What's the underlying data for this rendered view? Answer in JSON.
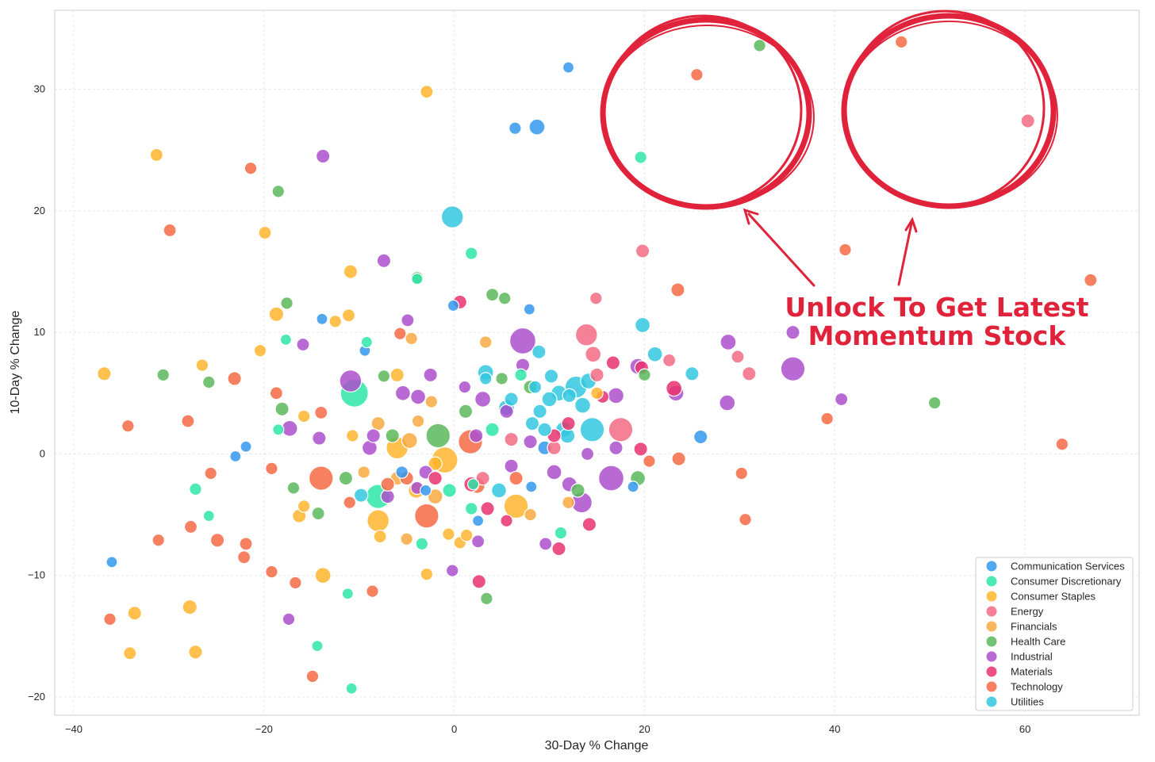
{
  "chart_data": {
    "type": "scatter",
    "xlabel": "30-Day % Change",
    "ylabel": "10-Day % Change",
    "xlim": [
      -42,
      72
    ],
    "ylim": [
      -21.5,
      36.5
    ],
    "xticks": [
      -40,
      -20,
      0,
      20,
      40,
      60
    ],
    "yticks": [
      -20,
      -10,
      0,
      10,
      20,
      30
    ],
    "xtick_labels": [
      "−40",
      "−20",
      "0",
      "20",
      "40",
      "60"
    ],
    "ytick_labels": [
      "−20",
      "−10",
      "0",
      "10",
      "20",
      "30"
    ],
    "grid": true,
    "legend_position": "bottom-right",
    "series": [
      {
        "name": "Communication Services",
        "color": "#3399ee",
        "points": [
          [
            12,
            31.8,
            1
          ],
          [
            6.4,
            26.8,
            1.2
          ],
          [
            8.7,
            26.9,
            2
          ],
          [
            -0.1,
            12.2,
            1
          ],
          [
            7.9,
            11.9,
            1
          ],
          [
            -13.9,
            11.1,
            1
          ],
          [
            -9.4,
            8.5,
            1
          ],
          [
            -21.9,
            0.6,
            1
          ],
          [
            -23,
            -0.2,
            1
          ],
          [
            -36,
            -8.9,
            1
          ],
          [
            8.1,
            -2.7,
            1
          ],
          [
            18.8,
            -2.7,
            1
          ],
          [
            25.9,
            1.4,
            1.5
          ],
          [
            9.5,
            0.5,
            1.5
          ],
          [
            -5.5,
            -1.5,
            1.2
          ],
          [
            -3,
            -3,
            1
          ],
          [
            2.5,
            -5.5,
            1
          ]
        ]
      },
      {
        "name": "Consumer Discretionary",
        "color": "#2ee6a8",
        "points": [
          [
            19.6,
            24.4,
            1.2
          ],
          [
            1.8,
            16.5,
            1.2
          ],
          [
            -3.9,
            14.4,
            1
          ],
          [
            -17.7,
            9.4,
            1
          ],
          [
            -9.2,
            9.2,
            1
          ],
          [
            -18.5,
            2,
            1
          ],
          [
            -27.2,
            -2.9,
            1.2
          ],
          [
            -25.8,
            -5.1,
            1
          ],
          [
            -11.2,
            -11.5,
            1
          ],
          [
            -14.4,
            -15.8,
            1
          ],
          [
            -10.8,
            -19.3,
            1
          ],
          [
            -3.4,
            -7.4,
            1.2
          ],
          [
            11.2,
            -6.5,
            1.2
          ],
          [
            1.8,
            -4.5,
            1.2
          ],
          [
            -10.5,
            5,
            4
          ],
          [
            -8,
            -3.5,
            3
          ],
          [
            4,
            2,
            1.5
          ],
          [
            -0.5,
            -3,
            1.5
          ],
          [
            7,
            6.5,
            1.2
          ],
          [
            2,
            -2.5,
            1
          ]
        ]
      },
      {
        "name": "Consumer Staples",
        "color": "#ffb52e",
        "points": [
          [
            -2.9,
            29.8,
            1.3
          ],
          [
            -31.3,
            24.6,
            1.3
          ],
          [
            -19.9,
            18.2,
            1.3
          ],
          [
            -10.9,
            15,
            1.5
          ],
          [
            -18.7,
            11.5,
            1.7
          ],
          [
            -11.1,
            11.4,
            1.3
          ],
          [
            -12.5,
            10.9,
            1.2
          ],
          [
            -20.4,
            8.5,
            1.2
          ],
          [
            -26.5,
            7.3,
            1.2
          ],
          [
            -36.8,
            6.6,
            1.5
          ],
          [
            -10.7,
            1.5,
            1.2
          ],
          [
            -15.8,
            3.1,
            1.2
          ],
          [
            -15.8,
            -4.3,
            1.2
          ],
          [
            -16.3,
            -5.1,
            1.5
          ],
          [
            -13.8,
            -10,
            2
          ],
          [
            -2.9,
            -9.9,
            1.2
          ],
          [
            -33.6,
            -13.1,
            1.5
          ],
          [
            -27.8,
            -12.6,
            1.7
          ],
          [
            -34.1,
            -16.4,
            1.3
          ],
          [
            -27.2,
            -16.3,
            1.5
          ],
          [
            -7.8,
            -6.8,
            1.3
          ],
          [
            -0.6,
            -6.6,
            1.2
          ],
          [
            0.6,
            -7.3,
            1.2
          ],
          [
            1.3,
            -6.7,
            1.2
          ],
          [
            6.5,
            -4.3,
            3
          ],
          [
            15,
            5,
            1.2
          ],
          [
            -1,
            -0.5,
            3.5
          ],
          [
            -6,
            0.5,
            2.5
          ],
          [
            -8,
            -5.5,
            2.5
          ],
          [
            -4,
            -3,
            2
          ],
          [
            -2,
            -0.8,
            1.5
          ],
          [
            -6,
            6.5,
            1.5
          ]
        ]
      },
      {
        "name": "Energy",
        "color": "#f26b84",
        "points": [
          [
            19.8,
            16.7,
            1.5
          ],
          [
            14.9,
            12.8,
            1.2
          ],
          [
            13.9,
            9.8,
            2.5
          ],
          [
            14.6,
            8.2,
            2
          ],
          [
            22.6,
            7.7,
            1.3
          ],
          [
            29.8,
            8,
            1.3
          ],
          [
            31,
            6.6,
            1.5
          ],
          [
            60.3,
            27.4,
            1.5
          ],
          [
            17.5,
            2,
            3
          ],
          [
            15,
            6.5,
            1.5
          ],
          [
            10.5,
            0.5,
            1.5
          ],
          [
            6,
            1.2,
            1.5
          ],
          [
            3,
            -2,
            1.5
          ]
        ]
      },
      {
        "name": "Financials",
        "color": "#f9a93f",
        "points": [
          [
            -4.5,
            9.5,
            1.2
          ],
          [
            3.3,
            9.2,
            1.2
          ],
          [
            -2.4,
            4.3,
            1.2
          ],
          [
            -3.8,
            2.7,
            1.2
          ],
          [
            -4.7,
            1.1,
            2
          ],
          [
            -8,
            2.5,
            1.5
          ],
          [
            -6,
            -2,
            1.5
          ],
          [
            -2,
            -3.5,
            1.8
          ],
          [
            12,
            -4,
            1.2
          ],
          [
            8,
            -5,
            1.2
          ],
          [
            -9.5,
            -1.5,
            1.2
          ],
          [
            -5,
            -7,
            1.2
          ]
        ]
      },
      {
        "name": "Health Care",
        "color": "#5cb85c",
        "points": [
          [
            32.1,
            33.6,
            1.2
          ],
          [
            -18.5,
            21.6,
            1.2
          ],
          [
            -17.6,
            12.4,
            1.2
          ],
          [
            -3.9,
            14.5,
            1.2
          ],
          [
            4,
            13.1,
            1.3
          ],
          [
            5.3,
            12.8,
            1.2
          ],
          [
            -30.6,
            6.5,
            1.2
          ],
          [
            -25.8,
            5.9,
            1.2
          ],
          [
            -7.4,
            6.4,
            1.2
          ],
          [
            -18.1,
            3.7,
            1.5
          ],
          [
            -1.7,
            1.5,
            3
          ],
          [
            -14.3,
            -4.9,
            1.3
          ],
          [
            -16.9,
            -2.8,
            1.2
          ],
          [
            -11.4,
            -2,
            1.5
          ],
          [
            19.3,
            -2,
            1.8
          ],
          [
            50.5,
            4.2,
            1.2
          ],
          [
            3.4,
            -11.9,
            1.2
          ],
          [
            1.2,
            3.5,
            1.5
          ],
          [
            8,
            5.5,
            1.5
          ],
          [
            13,
            -3,
            1.5
          ],
          [
            20,
            6.5,
            1.2
          ],
          [
            -6.5,
            1.5,
            1.5
          ],
          [
            5,
            6.2,
            1.2
          ]
        ]
      },
      {
        "name": "Industrial",
        "color": "#ab4fcc",
        "points": [
          [
            -13.8,
            24.5,
            1.5
          ],
          [
            -7.4,
            15.9,
            1.5
          ],
          [
            -15.9,
            9,
            1.3
          ],
          [
            -4.9,
            11,
            1.3
          ],
          [
            -10.9,
            6,
            2.5
          ],
          [
            -17.3,
            2.1,
            2
          ],
          [
            -14.2,
            1.3,
            1.5
          ],
          [
            -8.9,
            0.5,
            1.8
          ],
          [
            -3.9,
            -2.8,
            1.3
          ],
          [
            -0.2,
            -9.6,
            1.2
          ],
          [
            -17.4,
            -13.6,
            1.2
          ],
          [
            7.2,
            9.3,
            3.5
          ],
          [
            7.2,
            7.3,
            1.5
          ],
          [
            3,
            4.5,
            2
          ],
          [
            -5.4,
            5,
            1.8
          ],
          [
            -3.8,
            4.7,
            1.8
          ],
          [
            1.1,
            5.5,
            1.2
          ],
          [
            2.3,
            1.5,
            1.5
          ],
          [
            10.5,
            -1.5,
            1.8
          ],
          [
            12.1,
            -2.5,
            1.8
          ],
          [
            16.5,
            -2,
            3.3
          ],
          [
            13.4,
            -4,
            2.2
          ],
          [
            17,
            4.8,
            2
          ],
          [
            19.3,
            7.2,
            2
          ],
          [
            23.3,
            5,
            2
          ],
          [
            28.8,
            9.2,
            2
          ],
          [
            28.7,
            4.2,
            2
          ],
          [
            35.6,
            10,
            1.5
          ],
          [
            35.6,
            7,
            3
          ],
          [
            40.7,
            4.5,
            1.3
          ],
          [
            9.6,
            -7.4,
            1.3
          ],
          [
            2.5,
            -7.2,
            1.3
          ],
          [
            -3,
            -1.5,
            1.5
          ],
          [
            -2.5,
            6.5,
            1.5
          ],
          [
            5.5,
            3.5,
            1.5
          ],
          [
            -7,
            -3.5,
            1.5
          ],
          [
            17,
            0.5,
            1.5
          ],
          [
            8,
            1,
            1.5
          ],
          [
            -8.5,
            1.5,
            1.5
          ],
          [
            6,
            -1,
            1.5
          ],
          [
            14,
            0,
            1.3
          ]
        ]
      },
      {
        "name": "Materials",
        "color": "#e8336e",
        "points": [
          [
            0.6,
            12.5,
            1.5
          ],
          [
            16.7,
            7.5,
            1.5
          ],
          [
            15.6,
            4.7,
            1.3
          ],
          [
            19.7,
            7.1,
            1.5
          ],
          [
            23.1,
            5.4,
            2
          ],
          [
            19.6,
            0.4,
            1.5
          ],
          [
            11,
            -7.8,
            1.5
          ],
          [
            14.2,
            -5.8,
            1.5
          ],
          [
            2.6,
            -10.5,
            1.5
          ],
          [
            -2,
            -2,
            1.5
          ],
          [
            1.8,
            -2.5,
            1.8
          ],
          [
            3.5,
            -4.5,
            1.5
          ],
          [
            10.5,
            1.5,
            1.5
          ],
          [
            12,
            2.5,
            1.5
          ],
          [
            5.5,
            -5.5,
            1.2
          ]
        ]
      },
      {
        "name": "Technology",
        "color": "#f46a43",
        "points": [
          [
            25.5,
            31.2,
            1.2
          ],
          [
            47,
            33.9,
            1.2
          ],
          [
            -21.4,
            23.5,
            1.2
          ],
          [
            -29.9,
            18.4,
            1.3
          ],
          [
            41.1,
            16.8,
            1.2
          ],
          [
            66.9,
            14.3,
            1.3
          ],
          [
            23.5,
            13.5,
            1.5
          ],
          [
            -5.7,
            9.9,
            1.2
          ],
          [
            -23.1,
            6.2,
            1.5
          ],
          [
            -28,
            2.7,
            1.3
          ],
          [
            -34.3,
            2.3,
            1.2
          ],
          [
            -18.7,
            5,
            1.3
          ],
          [
            -14,
            3.4,
            1.3
          ],
          [
            -25.6,
            -1.6,
            1.2
          ],
          [
            -19.2,
            -1.2,
            1.2
          ],
          [
            -14,
            -2,
            3
          ],
          [
            -31.1,
            -7.1,
            1.2
          ],
          [
            -27.7,
            -6,
            1.3
          ],
          [
            -24.9,
            -7.1,
            1.5
          ],
          [
            -21.9,
            -7.4,
            1.3
          ],
          [
            -22.1,
            -8.5,
            1.3
          ],
          [
            -19.2,
            -9.7,
            1.2
          ],
          [
            -16.7,
            -10.6,
            1.2
          ],
          [
            -8.6,
            -11.3,
            1.2
          ],
          [
            -14.9,
            -18.3,
            1.2
          ],
          [
            -36.2,
            -13.6,
            1.2
          ],
          [
            -2.9,
            -5.1,
            3
          ],
          [
            1.7,
            1,
            3
          ],
          [
            2.4,
            -2.6,
            2
          ],
          [
            23.6,
            -0.4,
            1.5
          ],
          [
            30.2,
            -1.6,
            1.2
          ],
          [
            30.6,
            -5.4,
            1.2
          ],
          [
            39.2,
            2.9,
            1.2
          ],
          [
            63.9,
            0.8,
            1.2
          ],
          [
            20.5,
            -0.6,
            1.2
          ],
          [
            -5,
            -2,
            1.5
          ],
          [
            6.5,
            -2,
            1.5
          ],
          [
            -7,
            -2.5,
            1.5
          ],
          [
            -11,
            -4,
            1.2
          ]
        ]
      },
      {
        "name": "Utilities",
        "color": "#33c8e0",
        "points": [
          [
            -0.2,
            19.5,
            2.5
          ],
          [
            19.8,
            10.6,
            1.8
          ],
          [
            21.1,
            8.2,
            1.8
          ],
          [
            8.9,
            8.4,
            1.5
          ],
          [
            25,
            6.6,
            1.5
          ],
          [
            14.5,
            2,
            3
          ],
          [
            12.8,
            5.5,
            2.5
          ],
          [
            11,
            5,
            2
          ],
          [
            13.5,
            4,
            2
          ],
          [
            9,
            3.5,
            1.5
          ],
          [
            10,
            4.5,
            1.8
          ],
          [
            11.5,
            2,
            2
          ],
          [
            4.7,
            -3,
            1.8
          ],
          [
            3.3,
            6.7,
            2
          ],
          [
            5.5,
            3.8,
            2
          ],
          [
            14.1,
            6,
            2
          ],
          [
            10.2,
            6.4,
            1.5
          ],
          [
            9.5,
            2,
            1.5
          ],
          [
            11.9,
            1.5,
            1.8
          ],
          [
            12.1,
            4.8,
            1.5
          ],
          [
            8.2,
            2.5,
            1.5
          ],
          [
            3.3,
            6.2,
            1.2
          ],
          [
            6,
            4.5,
            1.5
          ],
          [
            8.5,
            5.5,
            1.3
          ],
          [
            -9.8,
            -3.4,
            1.5
          ]
        ]
      }
    ]
  },
  "promo": {
    "line1": "Unlock To Get Latest",
    "line2": "Momentum Stock"
  }
}
